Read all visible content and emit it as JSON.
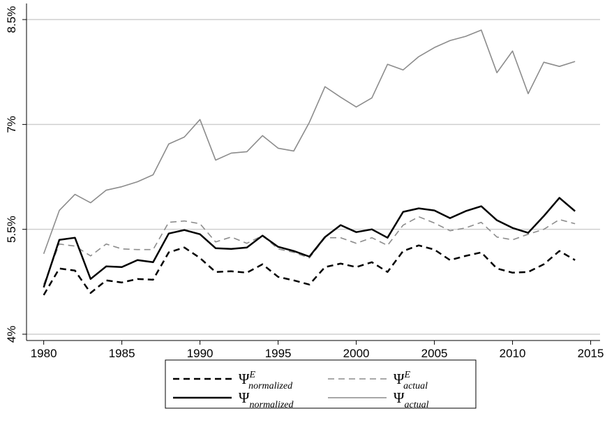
{
  "chart_data": {
    "type": "line",
    "x": [
      1980,
      1981,
      1982,
      1983,
      1984,
      1985,
      1986,
      1987,
      1988,
      1989,
      1990,
      1991,
      1992,
      1993,
      1994,
      1995,
      1996,
      1997,
      1998,
      1999,
      2000,
      2001,
      2002,
      2003,
      2004,
      2005,
      2006,
      2007,
      2008,
      2009,
      2010,
      2011,
      2012,
      2013,
      2014
    ],
    "xlim": [
      1978.9,
      2015.6
    ],
    "xticks": [
      1980,
      1985,
      1990,
      1995,
      2000,
      2005,
      2010,
      2015
    ],
    "ylim": [
      3.91,
      8.73
    ],
    "yticks": [
      {
        "value": 4,
        "label": "4%"
      },
      {
        "value": 5.5,
        "label": "5.5%"
      },
      {
        "value": 7,
        "label": "7%"
      },
      {
        "value": 8.5,
        "label": "8.5%"
      }
    ],
    "grid": true,
    "legend": "bottom",
    "series": [
      {
        "name": "Ψ",
        "sup": "E",
        "sub": "normalized",
        "color": "#000000",
        "dashed": true,
        "values": [
          4.56,
          4.94,
          4.91,
          4.59,
          4.77,
          4.74,
          4.79,
          4.78,
          5.17,
          5.24,
          5.09,
          4.89,
          4.9,
          4.88,
          5.0,
          4.82,
          4.77,
          4.71,
          4.96,
          5.01,
          4.96,
          5.03,
          4.89,
          5.19,
          5.27,
          5.21,
          5.06,
          5.12,
          5.17,
          4.94,
          4.88,
          4.89,
          5.0,
          5.19,
          5.06
        ]
      },
      {
        "name": "Ψ",
        "sup": "E",
        "sub": "actual",
        "color": "#8c8c8c",
        "dashed": true,
        "values": [
          4.71,
          5.29,
          5.26,
          5.12,
          5.29,
          5.22,
          5.21,
          5.21,
          5.6,
          5.62,
          5.58,
          5.32,
          5.39,
          5.3,
          5.41,
          5.22,
          5.17,
          5.09,
          5.38,
          5.38,
          5.3,
          5.38,
          5.27,
          5.56,
          5.68,
          5.59,
          5.48,
          5.52,
          5.6,
          5.39,
          5.35,
          5.43,
          5.5,
          5.64,
          5.58
        ]
      },
      {
        "name": "Ψ",
        "sub": "normalized",
        "color": "#000000",
        "dashed": false,
        "values": [
          4.67,
          5.35,
          5.38,
          4.79,
          4.97,
          4.96,
          5.06,
          5.03,
          5.44,
          5.49,
          5.43,
          5.23,
          5.22,
          5.24,
          5.41,
          5.25,
          5.19,
          5.11,
          5.39,
          5.56,
          5.46,
          5.5,
          5.38,
          5.75,
          5.8,
          5.77,
          5.66,
          5.76,
          5.83,
          5.63,
          5.52,
          5.45,
          5.69,
          5.95,
          5.76
        ]
      },
      {
        "name": "Ψ",
        "sub": "actual",
        "color": "#8c8c8c",
        "dashed": false,
        "values": [
          5.15,
          5.77,
          6.0,
          5.88,
          6.06,
          6.11,
          6.18,
          6.28,
          6.72,
          6.82,
          7.07,
          6.49,
          6.59,
          6.61,
          6.84,
          6.66,
          6.62,
          7.03,
          7.54,
          7.39,
          7.25,
          7.38,
          7.86,
          7.78,
          7.97,
          8.1,
          8.2,
          8.26,
          8.35,
          7.74,
          8.05,
          7.44,
          7.89,
          7.83,
          7.9
        ]
      }
    ]
  }
}
